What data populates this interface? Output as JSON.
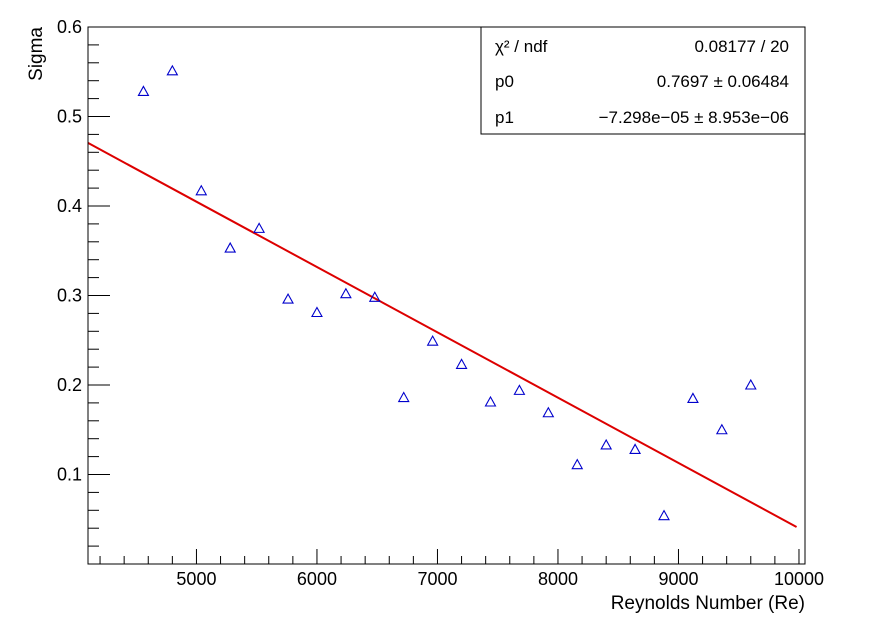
{
  "chart_data": {
    "type": "scatter",
    "title": "",
    "xlabel": "Reynolds Number (Re)",
    "ylabel": "Sigma",
    "xlim": [
      4100,
      10050
    ],
    "ylim": [
      0.0,
      0.6
    ],
    "xticks": [
      5000,
      6000,
      7000,
      8000,
      9000,
      10000
    ],
    "xtick_labels": [
      "5000",
      "6000",
      "7000",
      "8000",
      "9000",
      "10000"
    ],
    "yticks": [
      0.1,
      0.2,
      0.3,
      0.4,
      0.5,
      0.6
    ],
    "ytick_labels": [
      "0.1",
      "0.2",
      "0.3",
      "0.4",
      "0.5",
      "0.6"
    ],
    "grid": false,
    "series": [
      {
        "marker": "open-triangle",
        "color": "#0000cc",
        "points": [
          {
            "x": 4560,
            "y": 0.528
          },
          {
            "x": 4800,
            "y": 0.551
          },
          {
            "x": 5040,
            "y": 0.417
          },
          {
            "x": 5280,
            "y": 0.353
          },
          {
            "x": 5520,
            "y": 0.375
          },
          {
            "x": 5760,
            "y": 0.296
          },
          {
            "x": 6000,
            "y": 0.281
          },
          {
            "x": 6240,
            "y": 0.302
          },
          {
            "x": 6480,
            "y": 0.298
          },
          {
            "x": 6720,
            "y": 0.186
          },
          {
            "x": 6960,
            "y": 0.249
          },
          {
            "x": 7200,
            "y": 0.223
          },
          {
            "x": 7440,
            "y": 0.181
          },
          {
            "x": 7680,
            "y": 0.194
          },
          {
            "x": 7920,
            "y": 0.169
          },
          {
            "x": 8160,
            "y": 0.111
          },
          {
            "x": 8400,
            "y": 0.133
          },
          {
            "x": 8640,
            "y": 0.128
          },
          {
            "x": 8880,
            "y": 0.054
          },
          {
            "x": 9120,
            "y": 0.185
          },
          {
            "x": 9360,
            "y": 0.15
          },
          {
            "x": 9600,
            "y": 0.2
          }
        ]
      }
    ],
    "fit": {
      "color": "#dd0000",
      "p0": 0.7697,
      "p1": -7.298e-05,
      "x_range": [
        4100,
        9980
      ]
    },
    "stats_box": {
      "placement": "top-right",
      "rows": [
        {
          "label": "χ² / ndf",
          "value": "0.08177 / 20"
        },
        {
          "label": "p0",
          "value": "0.7697 ± 0.06484"
        },
        {
          "label": "p1",
          "value": "−7.298e−05 ± 8.953e−06"
        }
      ]
    }
  }
}
